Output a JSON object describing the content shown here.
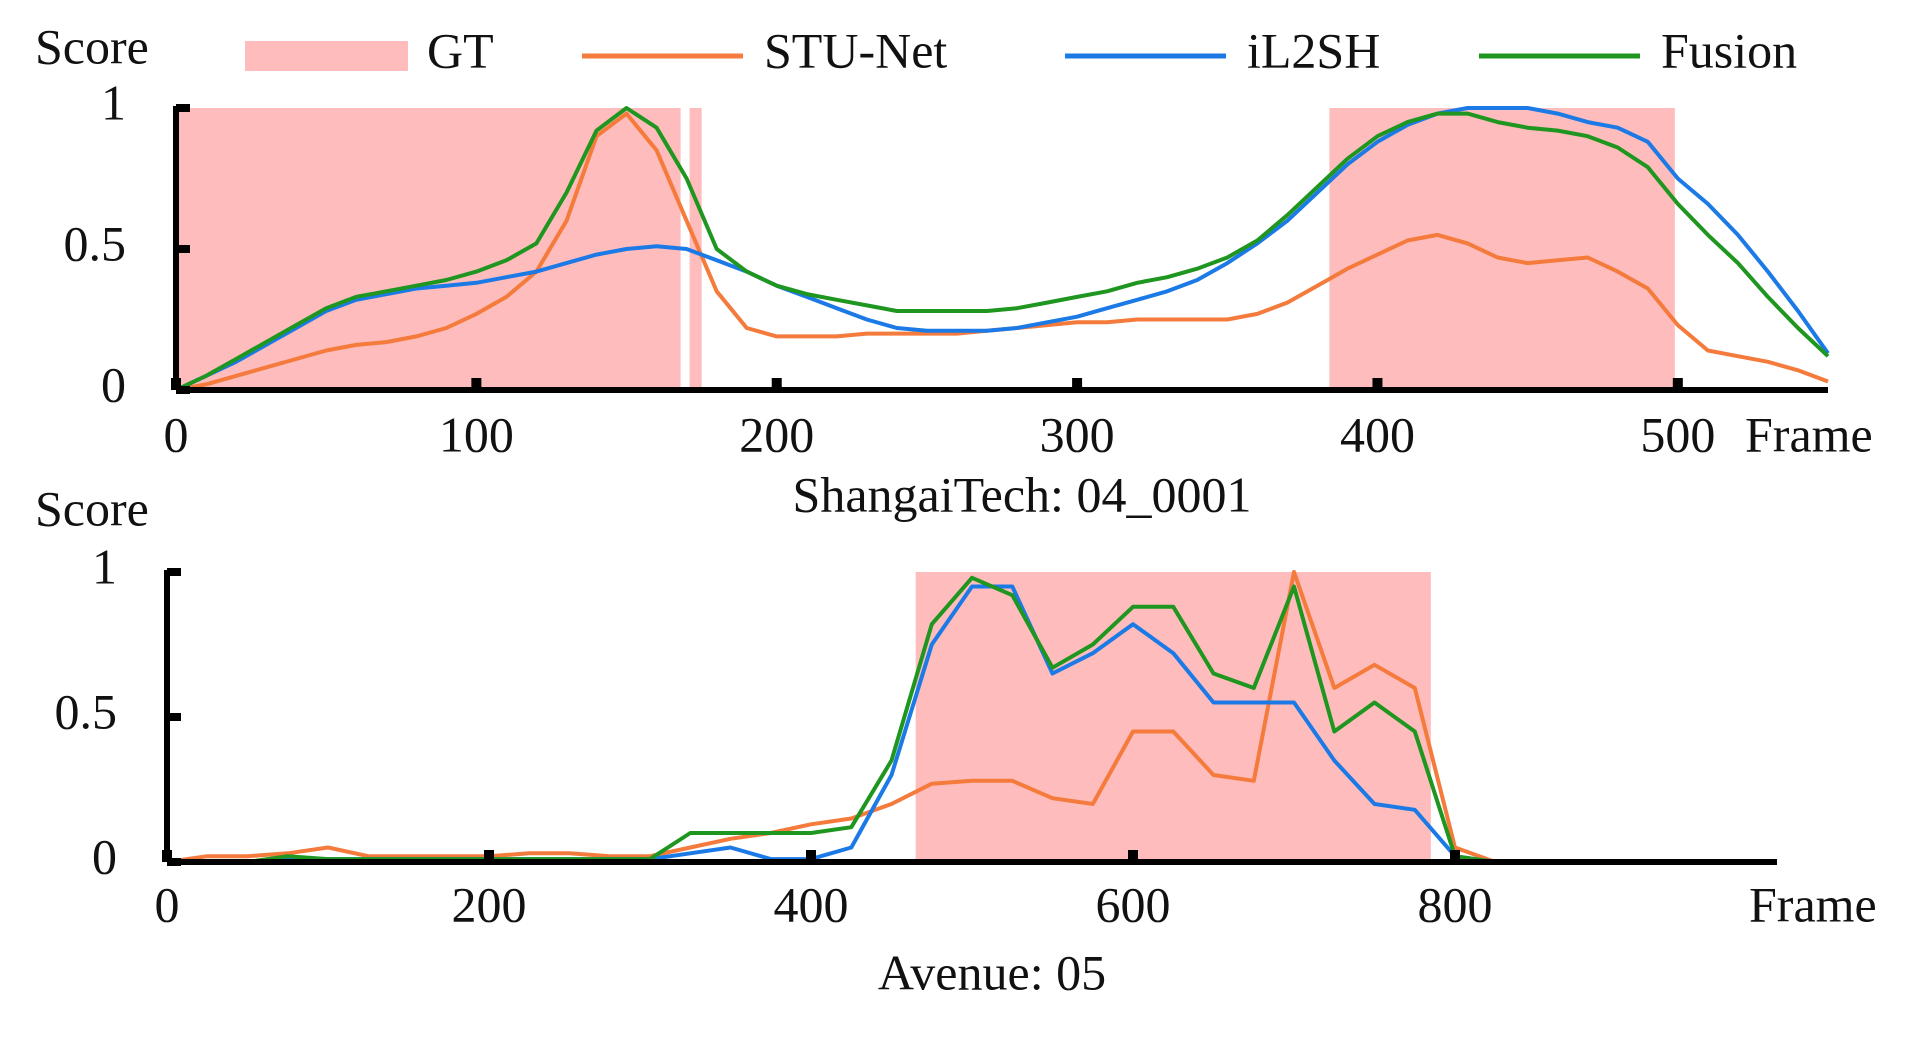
{
  "chart_data": [
    {
      "type": "line",
      "subtitle": "ShangaiTech: 04_0001",
      "xlabel": "Frame",
      "ylabel": "Score",
      "xlim": [
        0,
        550
      ],
      "ylim": [
        0,
        1
      ],
      "xticks": [
        0,
        100,
        200,
        300,
        400,
        500
      ],
      "yticks": [
        0,
        0.5,
        1
      ],
      "legend": "top",
      "gt": {
        "name": "GT",
        "color": "#ffbcbc",
        "ranges": [
          [
            0,
            168
          ],
          [
            171,
            175
          ],
          [
            384,
            499
          ]
        ]
      },
      "x": [
        0,
        10,
        20,
        30,
        40,
        50,
        60,
        70,
        80,
        90,
        100,
        110,
        120,
        130,
        140,
        150,
        160,
        170,
        180,
        190,
        200,
        210,
        220,
        230,
        240,
        250,
        260,
        270,
        280,
        290,
        300,
        310,
        320,
        330,
        340,
        350,
        360,
        370,
        380,
        390,
        400,
        410,
        420,
        430,
        440,
        450,
        460,
        470,
        480,
        490,
        500,
        510,
        520,
        530,
        540,
        550
      ],
      "series": [
        {
          "name": "STU-Net",
          "color": "#f47b3c",
          "values": [
            0,
            0.02,
            0.05,
            0.08,
            0.11,
            0.14,
            0.16,
            0.17,
            0.19,
            0.22,
            0.27,
            0.33,
            0.42,
            0.6,
            0.9,
            0.98,
            0.85,
            0.6,
            0.35,
            0.22,
            0.19,
            0.19,
            0.19,
            0.2,
            0.2,
            0.2,
            0.2,
            0.21,
            0.22,
            0.23,
            0.24,
            0.24,
            0.25,
            0.25,
            0.25,
            0.25,
            0.27,
            0.31,
            0.37,
            0.43,
            0.48,
            0.53,
            0.55,
            0.52,
            0.47,
            0.45,
            0.46,
            0.47,
            0.42,
            0.36,
            0.23,
            0.14,
            0.12,
            0.1,
            0.07,
            0.03
          ]
        },
        {
          "name": "iL2SH",
          "color": "#1c7ae6",
          "values": [
            0,
            0.05,
            0.1,
            0.16,
            0.22,
            0.28,
            0.32,
            0.34,
            0.36,
            0.37,
            0.38,
            0.4,
            0.42,
            0.45,
            0.48,
            0.5,
            0.51,
            0.5,
            0.46,
            0.42,
            0.37,
            0.33,
            0.29,
            0.25,
            0.22,
            0.21,
            0.21,
            0.21,
            0.22,
            0.24,
            0.26,
            0.29,
            0.32,
            0.35,
            0.39,
            0.45,
            0.52,
            0.6,
            0.7,
            0.8,
            0.88,
            0.94,
            0.98,
            1.0,
            1.0,
            1.0,
            0.98,
            0.95,
            0.93,
            0.88,
            0.75,
            0.66,
            0.55,
            0.42,
            0.28,
            0.13
          ]
        },
        {
          "name": "Fusion",
          "color": "#1f961f",
          "values": [
            0,
            0.05,
            0.11,
            0.17,
            0.23,
            0.29,
            0.33,
            0.35,
            0.37,
            0.39,
            0.42,
            0.46,
            0.52,
            0.7,
            0.92,
            1.0,
            0.93,
            0.75,
            0.5,
            0.42,
            0.37,
            0.34,
            0.32,
            0.3,
            0.28,
            0.28,
            0.28,
            0.28,
            0.29,
            0.31,
            0.33,
            0.35,
            0.38,
            0.4,
            0.43,
            0.47,
            0.53,
            0.62,
            0.72,
            0.82,
            0.9,
            0.95,
            0.98,
            0.98,
            0.95,
            0.93,
            0.92,
            0.9,
            0.86,
            0.79,
            0.66,
            0.55,
            0.45,
            0.33,
            0.22,
            0.12
          ]
        }
      ]
    },
    {
      "type": "line",
      "subtitle": "Avenue: 05",
      "xlabel": "Frame",
      "ylabel": "Score",
      "xlim": [
        0,
        1000
      ],
      "ylim": [
        0,
        1
      ],
      "xticks": [
        0,
        200,
        400,
        600,
        800
      ],
      "yticks": [
        0,
        0.5,
        1
      ],
      "gt": {
        "color": "#ffbcbc",
        "ranges": [
          [
            465,
            785
          ]
        ]
      },
      "x": [
        0,
        25,
        50,
        75,
        100,
        125,
        150,
        175,
        200,
        225,
        250,
        275,
        300,
        325,
        350,
        375,
        400,
        425,
        450,
        475,
        500,
        525,
        550,
        575,
        600,
        625,
        650,
        675,
        700,
        725,
        750,
        775,
        800,
        825,
        850,
        875,
        900,
        925,
        950,
        975,
        1000
      ],
      "series": [
        {
          "color": "#f47b3c",
          "values": [
            0,
            0.02,
            0.02,
            0.03,
            0.05,
            0.02,
            0.02,
            0.02,
            0.02,
            0.03,
            0.03,
            0.02,
            0.02,
            0.05,
            0.08,
            0.1,
            0.13,
            0.15,
            0.2,
            0.27,
            0.28,
            0.28,
            0.22,
            0.2,
            0.45,
            0.45,
            0.3,
            0.28,
            1.0,
            0.6,
            0.68,
            0.6,
            0.05,
            0,
            0,
            0,
            0,
            0,
            0,
            0,
            0
          ]
        },
        {
          "color": "#1c7ae6",
          "values": [
            0,
            0,
            0,
            0.01,
            0.01,
            0.01,
            0.01,
            0.01,
            0.01,
            0.01,
            0.01,
            0.01,
            0.01,
            0.03,
            0.05,
            0.01,
            0.01,
            0.05,
            0.3,
            0.75,
            0.95,
            0.95,
            0.65,
            0.72,
            0.82,
            0.72,
            0.55,
            0.55,
            0.55,
            0.35,
            0.2,
            0.18,
            0.02,
            0,
            0,
            0,
            0,
            0,
            0,
            0,
            0
          ]
        },
        {
          "color": "#1f961f",
          "values": [
            0,
            0,
            0,
            0.02,
            0.01,
            0.01,
            0.01,
            0.01,
            0.01,
            0.01,
            0.01,
            0.01,
            0.01,
            0.1,
            0.1,
            0.1,
            0.1,
            0.12,
            0.35,
            0.82,
            0.98,
            0.92,
            0.67,
            0.75,
            0.88,
            0.88,
            0.65,
            0.6,
            0.95,
            0.45,
            0.55,
            0.45,
            0.02,
            0,
            0,
            0,
            0,
            0,
            0,
            0,
            0
          ]
        }
      ]
    }
  ]
}
